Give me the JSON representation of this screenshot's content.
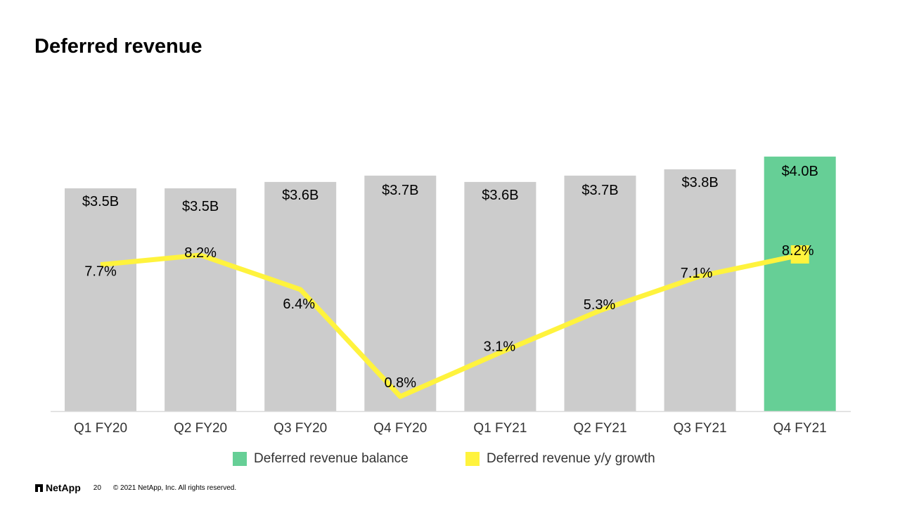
{
  "slide": {
    "title": "Deferred revenue",
    "page_number": "20",
    "copyright": "© 2021 NetApp, Inc. All rights reserved.",
    "logo_text": "NetApp"
  },
  "colors": {
    "bar_default": "#cccccc",
    "bar_highlight": "#66cf96",
    "line": "#fff33d",
    "axis": "#d9d9d9",
    "label_text": "#000000",
    "tick_text": "#333333"
  },
  "chart_data": {
    "type": "bar",
    "categories": [
      "Q1 FY20",
      "Q2 FY20",
      "Q3 FY20",
      "Q4 FY20",
      "Q1 FY21",
      "Q2 FY21",
      "Q3 FY21",
      "Q4 FY21"
    ],
    "series": [
      {
        "name": "Deferred revenue balance",
        "type": "bar",
        "values": [
          3.5,
          3.5,
          3.6,
          3.7,
          3.6,
          3.7,
          3.8,
          4.0
        ],
        "labels": [
          "$3.5B",
          "$3.5B",
          "$3.6B",
          "$3.7B",
          "$3.6B",
          "$3.7B",
          "$3.8B",
          "$4.0B"
        ],
        "highlight_index": 7
      },
      {
        "name": "Deferred revenue y/y growth",
        "type": "line",
        "values": [
          7.7,
          8.2,
          6.4,
          0.8,
          3.1,
          5.3,
          7.1,
          8.2
        ],
        "labels": [
          "7.7%",
          "8.2%",
          "6.4%",
          "0.8%",
          "3.1%",
          "5.3%",
          "7.1%",
          "8.2%"
        ]
      }
    ],
    "title": "Deferred revenue",
    "xlabel": "",
    "ylabel": "",
    "grid": false,
    "legend": "bottom"
  }
}
